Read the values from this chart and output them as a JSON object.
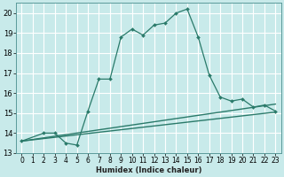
{
  "xlabel": "Humidex (Indice chaleur)",
  "bg_color": "#c8eaea",
  "grid_color": "#ffffff",
  "line_color": "#2a7a6a",
  "xlim": [
    -0.5,
    23.5
  ],
  "ylim": [
    13,
    20.5
  ],
  "yticks": [
    13,
    14,
    15,
    16,
    17,
    18,
    19,
    20
  ],
  "xticks": [
    0,
    1,
    2,
    3,
    4,
    5,
    6,
    7,
    8,
    9,
    10,
    11,
    12,
    13,
    14,
    15,
    16,
    17,
    18,
    19,
    20,
    21,
    22,
    23
  ],
  "main_line_x": [
    0,
    2,
    3,
    4,
    5,
    6,
    7,
    8,
    9,
    10,
    11,
    12,
    13,
    14,
    15,
    16,
    17,
    18,
    19,
    20,
    21,
    22,
    23
  ],
  "main_line_y": [
    13.6,
    14.0,
    14.0,
    13.5,
    13.4,
    15.1,
    16.7,
    16.7,
    18.8,
    19.2,
    18.9,
    19.4,
    19.5,
    20.0,
    20.2,
    18.8,
    16.9,
    15.8,
    15.6,
    15.7,
    15.3,
    15.4,
    15.1
  ],
  "line2_x": [
    0,
    23
  ],
  "line2_y": [
    13.6,
    15.05
  ],
  "line3_x": [
    0,
    23
  ],
  "line3_y": [
    13.6,
    15.45
  ]
}
